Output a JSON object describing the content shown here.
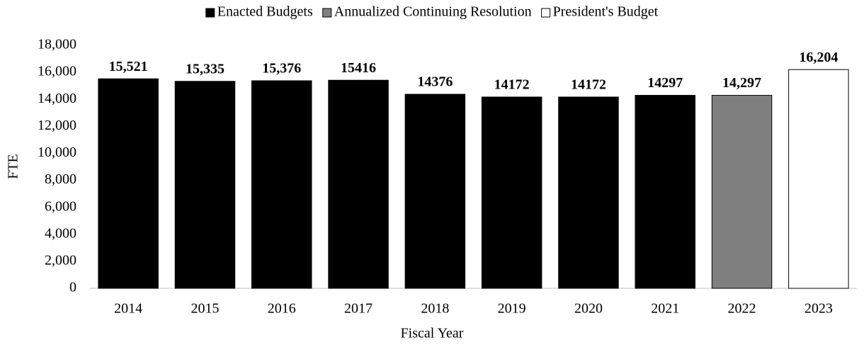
{
  "chart_data": {
    "type": "bar",
    "x_label": "Fiscal Year",
    "y_label": "FTE",
    "categories": [
      "2014",
      "2015",
      "2016",
      "2017",
      "2018",
      "2019",
      "2020",
      "2021",
      "2022",
      "2023"
    ],
    "series": [
      {
        "name": "Enacted Budgets",
        "color": "#000000",
        "values": [
          15521,
          15335,
          15376,
          15416,
          14376,
          14172,
          14172,
          14297,
          null,
          null
        ],
        "value_labels": [
          "15,521",
          "15,335",
          "15,376",
          "15416",
          "14376",
          "14172",
          "14172",
          "14297",
          null,
          null
        ]
      },
      {
        "name": "Annualized Continuing Resolution",
        "color": "#7f7f7f",
        "values": [
          null,
          null,
          null,
          null,
          null,
          null,
          null,
          null,
          14297,
          null
        ],
        "value_labels": [
          null,
          null,
          null,
          null,
          null,
          null,
          null,
          null,
          "14,297",
          null
        ]
      },
      {
        "name": "President's Budget",
        "color": "#ffffff",
        "values": [
          null,
          null,
          null,
          null,
          null,
          null,
          null,
          null,
          null,
          16204
        ],
        "value_labels": [
          null,
          null,
          null,
          null,
          null,
          null,
          null,
          null,
          null,
          "16,204"
        ]
      }
    ],
    "ylim": [
      0,
      18000
    ],
    "yticks": [
      0,
      {
        "value": 2000,
        "label": "2,000"
      },
      {
        "value": 4000,
        "label": "4,000"
      },
      {
        "value": 6000,
        "label": "6,000"
      },
      {
        "value": 8000,
        "label": "8,000"
      },
      {
        "value": 10000,
        "label": "10,000"
      },
      {
        "value": 12000,
        "label": "12,000"
      },
      {
        "value": 14000,
        "label": "14,000"
      },
      {
        "value": 16000,
        "label": "16,000"
      },
      {
        "value": 18000,
        "label": "18,000"
      }
    ],
    "grid": false,
    "legend": "top"
  }
}
